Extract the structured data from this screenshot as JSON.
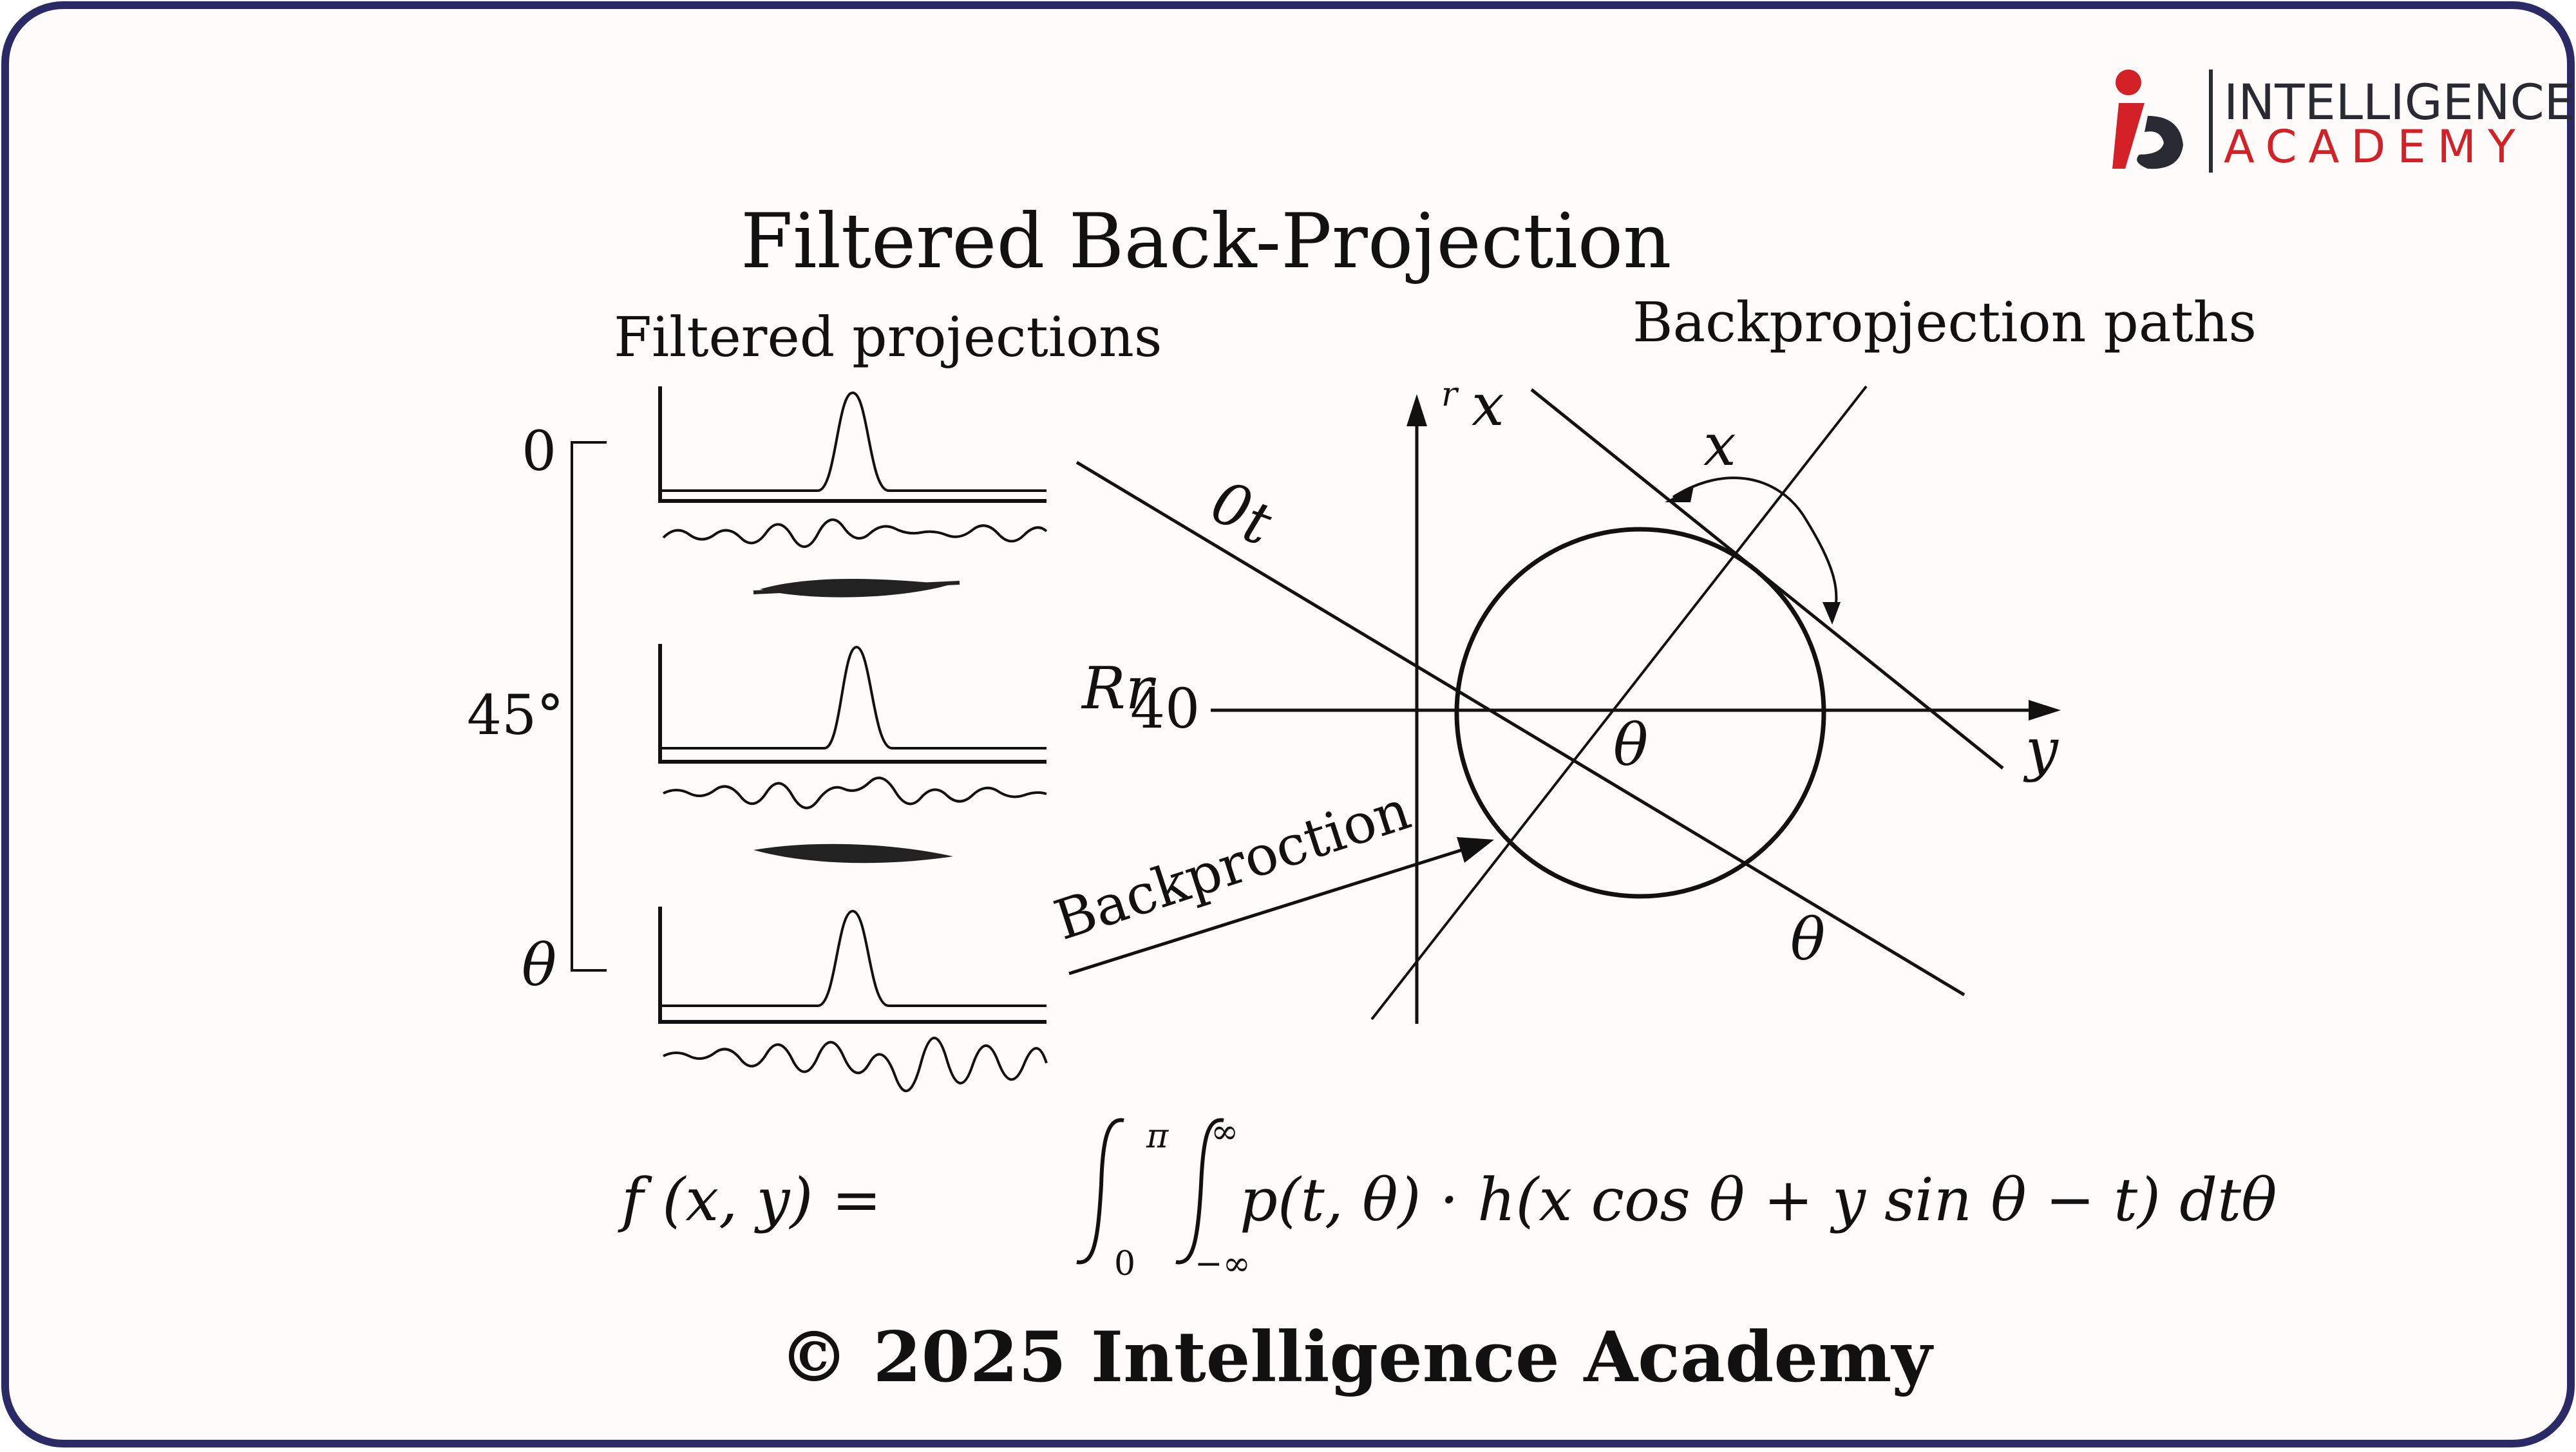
{
  "brand": {
    "line1": "INTELLIGENCE",
    "line2": "ACADEMY",
    "colors": {
      "dark": "#2a2a33",
      "accent": "#d42027",
      "border": "#2c2a66"
    }
  },
  "title": "Filtered Back-Projection",
  "projections": {
    "heading": "Filtered projections",
    "angles": [
      "0",
      "45°",
      "θ"
    ]
  },
  "paths": {
    "heading": "Backpropjection paths",
    "labels": {
      "upper_line": "0",
      "upper_line_sub": "t",
      "left_axis_text": "Rr",
      "left_axis_sub": "r",
      "left_axis_num": "40",
      "y_axis_small": "r",
      "y_axis": "x",
      "x_axis": "y",
      "arc_label": "x",
      "center_angle": "θ",
      "lower_angle": "θ",
      "arrow_text": "Backproction"
    }
  },
  "formula": {
    "lhs": "f (x, y) =",
    "upper_limit_outer": "π",
    "lower_limit_outer": "0",
    "upper_limit_inner": "∞",
    "lower_limit_inner": "−∞",
    "integrand": "p(t, θ) · h(x cos θ + y sin θ − t) dtθ"
  },
  "copyright": "© 2025 Intelligence Academy"
}
